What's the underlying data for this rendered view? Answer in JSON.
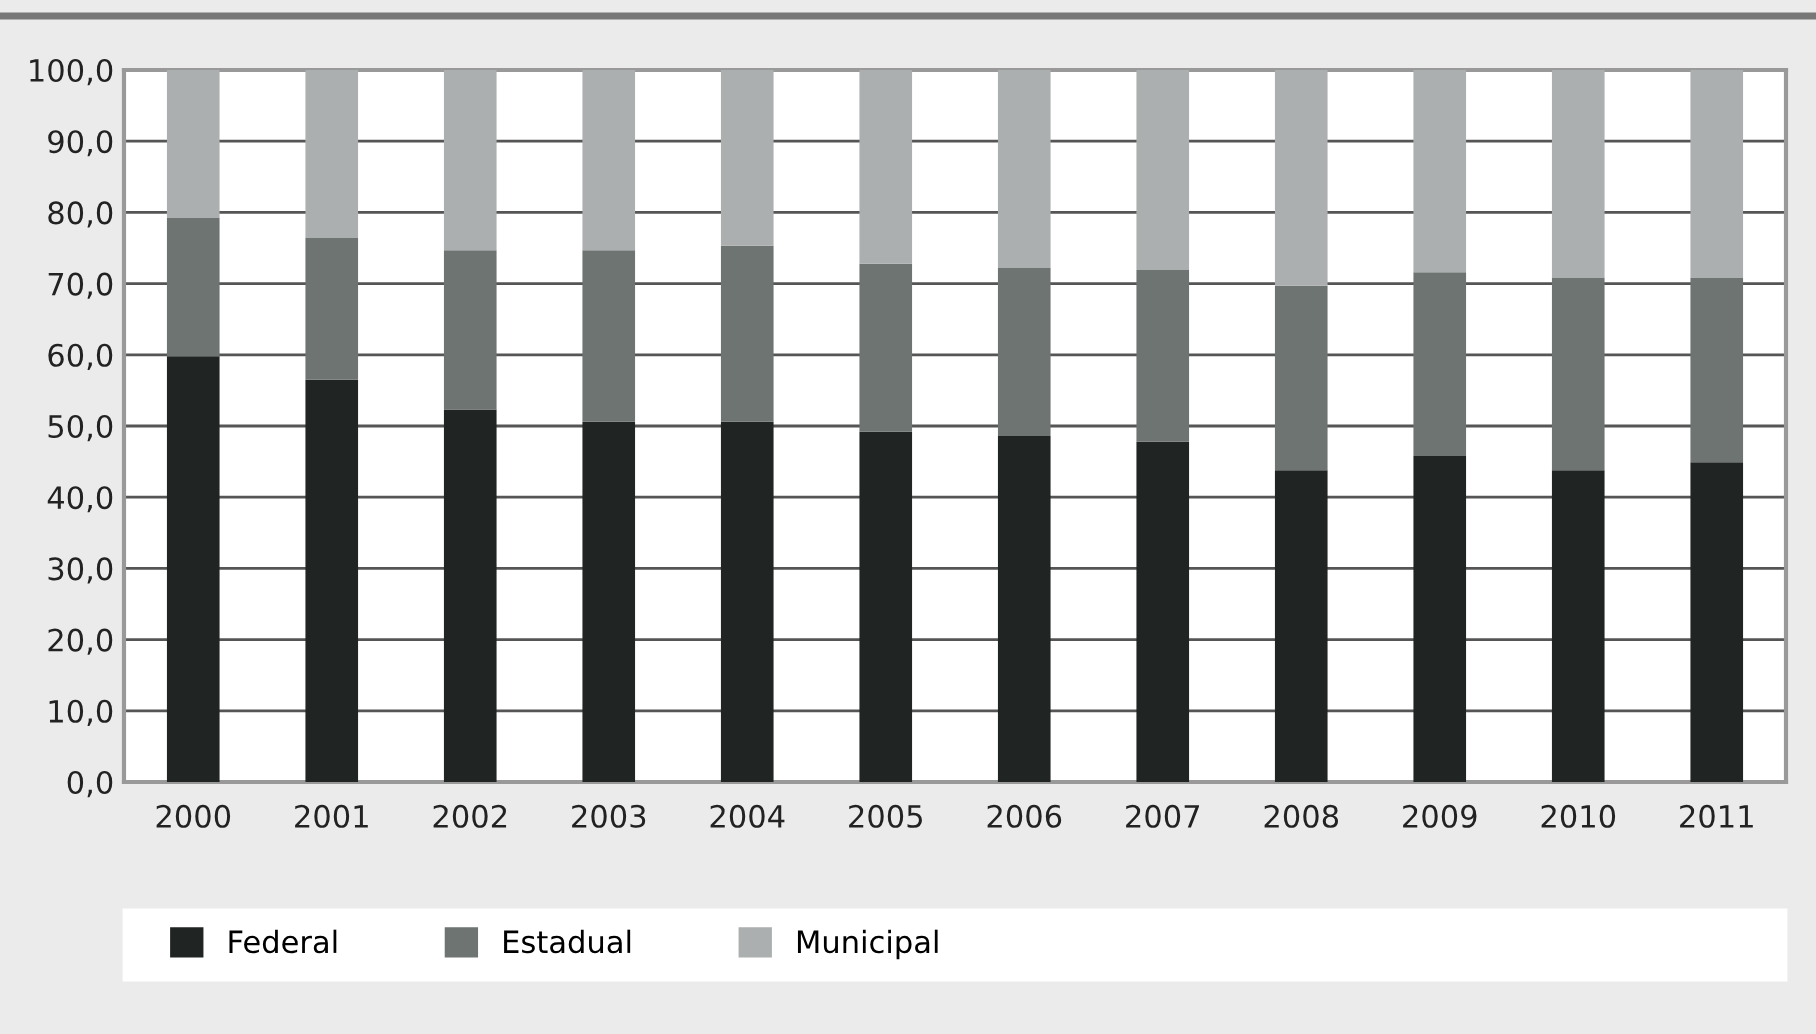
{
  "chart_data": {
    "type": "bar",
    "stacked": true,
    "categories": [
      "2000",
      "2001",
      "2002",
      "2003",
      "2004",
      "2005",
      "2006",
      "2007",
      "2008",
      "2009",
      "2010",
      "2011"
    ],
    "series": [
      {
        "name": "Federal",
        "color": "#202422",
        "values": [
          59.8,
          56.5,
          52.3,
          50.6,
          50.6,
          49.2,
          48.6,
          47.8,
          43.8,
          45.8,
          43.8,
          44.9
        ]
      },
      {
        "name": "Estadual",
        "color": "#6e7472",
        "values": [
          19.4,
          19.9,
          22.4,
          24.1,
          24.7,
          23.6,
          23.6,
          24.1,
          25.9,
          25.8,
          27.0,
          25.9
        ]
      },
      {
        "name": "Municipal",
        "color": "#acafaf",
        "values": [
          20.8,
          23.6,
          25.3,
          25.3,
          24.7,
          27.2,
          27.8,
          28.1,
          30.3,
          28.4,
          29.2,
          29.2
        ]
      }
    ],
    "ylim": [
      0,
      100
    ],
    "yticks": [
      {
        "value": 0,
        "label": "0,0"
      },
      {
        "value": 10,
        "label": "10,0"
      },
      {
        "value": 20,
        "label": "20,0"
      },
      {
        "value": 30,
        "label": "30,0"
      },
      {
        "value": 40,
        "label": "40,0"
      },
      {
        "value": 50,
        "label": "50,0"
      },
      {
        "value": 60,
        "label": "60,0"
      },
      {
        "value": 70,
        "label": "70,0"
      },
      {
        "value": 80,
        "label": "80,0"
      },
      {
        "value": 90,
        "label": "90,0"
      },
      {
        "value": 100,
        "label": "100,0"
      }
    ],
    "grid": "y",
    "legend": "bottom"
  }
}
